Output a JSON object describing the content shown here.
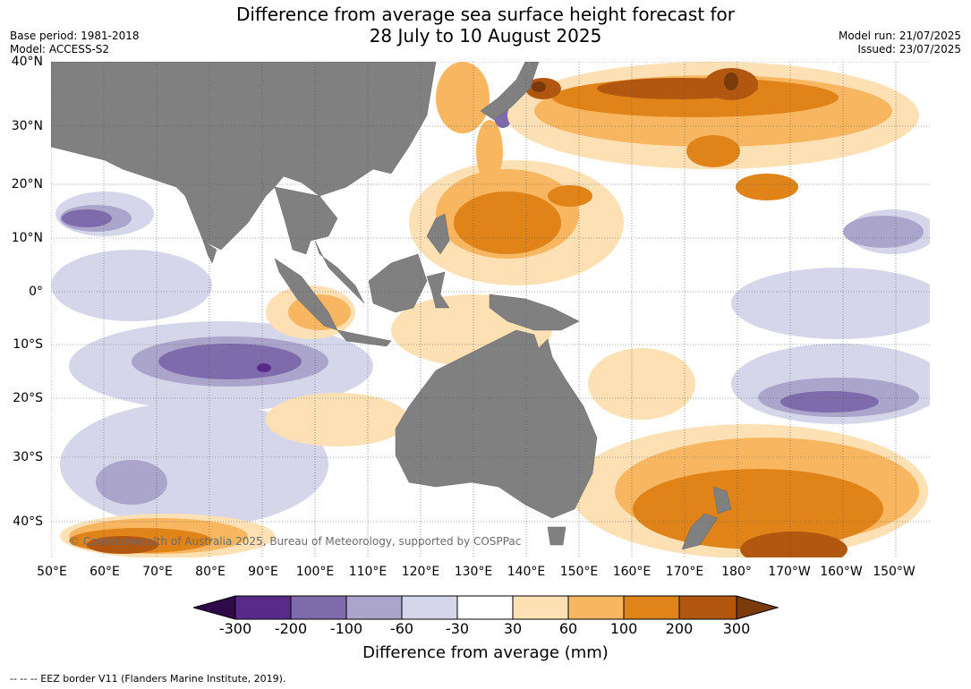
{
  "title_line1": "Difference from average sea surface height forecast for",
  "title_line2": "28 July to 10 August 2025",
  "meta_left": {
    "base_period": "Base period: 1981-2018",
    "model": "Model: ACCESS-S2"
  },
  "meta_right": {
    "model_run": "Model run: 21/07/2025",
    "issued": "Issued: 23/07/2025"
  },
  "lat_labels": [
    "40°N",
    "30°N",
    "20°N",
    "10°N",
    "0°",
    "10°S",
    "20°S",
    "30°S",
    "40°S"
  ],
  "lon_labels": [
    "50°E",
    "60°E",
    "70°E",
    "80°E",
    "90°E",
    "100°E",
    "110°E",
    "120°E",
    "130°E",
    "140°E",
    "150°E",
    "160°E",
    "170°E",
    "180°",
    "170°W",
    "160°W",
    "150°W"
  ],
  "copyright": "© Commonwealth of Australia 2025, Bureau of Meteorology, supported by COSPPac",
  "colorbar": {
    "ticks": [
      "-300",
      "-200",
      "-100",
      "-60",
      "-30",
      "30",
      "60",
      "100",
      "200",
      "300"
    ],
    "colors": [
      "#2e0a4a",
      "#5a2a8a",
      "#7e6bab",
      "#aba5cc",
      "#d6d6ea",
      "#ffffff",
      "#fde0b4",
      "#f8b660",
      "#e0841a",
      "#b25710",
      "#7a3a0a"
    ],
    "title": "Difference from average (mm)"
  },
  "colors": {
    "land": "#808080",
    "grid": "#555555"
  },
  "eez_note": "--  --  -- EEZ border V11 (Flanders Marine Institute, 2019)."
}
